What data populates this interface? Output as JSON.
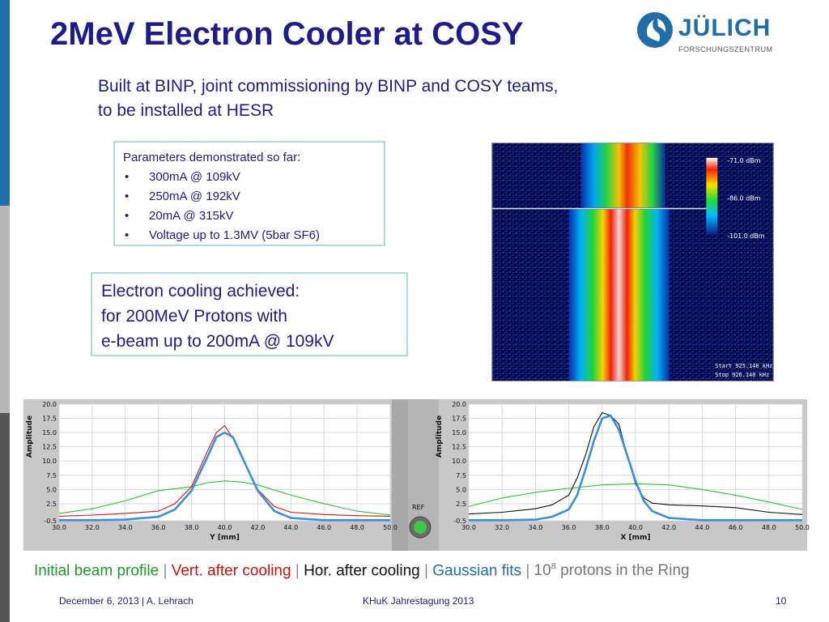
{
  "title": "2MeV Electron Cooler at COSY",
  "logo": {
    "name": "JÜLICH",
    "subname": "FORSCHUNGSZENTRUM"
  },
  "intro": {
    "line1": "Built at BINP, joint commissioning by BINP and COSY teams,",
    "line2": "to be installed at HESR"
  },
  "parameters": {
    "heading": "Parameters demonstrated so far:",
    "items": [
      "300mA @ 109kV",
      "250mA @ 192kV",
      "20mA @ 315kV",
      "Voltage up to 1.3MV (5bar SF6)"
    ]
  },
  "cooling": {
    "line1": "Electron cooling achieved:",
    "line2": "for 200MeV Protons with",
    "line3": "e-beam up to 200mA @ 109kV"
  },
  "spectrum": {
    "scale_labels": [
      "-71.0 dBm",
      "-86.0 dBm",
      "-101.0 dBm"
    ],
    "start": "Start 925.140 kHz",
    "stop": "Stop 926.140 kHz"
  },
  "chart_data": [
    {
      "type": "line",
      "ylabel": "Amplitude",
      "xlabel": "Y [mm]",
      "xlim": [
        30,
        50
      ],
      "ylim": [
        -0.5,
        20
      ],
      "xticks": [
        "30.0",
        "32.0",
        "34.0",
        "36.0",
        "38.0",
        "40.0",
        "42.0",
        "44.0",
        "46.0",
        "48.0",
        "50.0"
      ],
      "yticks": [
        "20.0",
        "17.5",
        "15.0",
        "12.5",
        "10.0",
        "7.5",
        "5.0",
        "2.5",
        "-0.5"
      ],
      "series": [
        {
          "color": "#22cc22",
          "x": [
            30,
            32,
            34,
            36,
            38,
            39,
            40,
            41,
            42,
            44,
            46,
            48,
            50
          ],
          "y": [
            0.8,
            1.6,
            3.0,
            4.8,
            5.5,
            6.2,
            6.5,
            6.3,
            5.8,
            4.0,
            2.5,
            1.2,
            0.5
          ]
        },
        {
          "color": "#dd1111",
          "x": [
            30,
            32,
            34,
            36,
            37,
            38,
            39,
            39.5,
            40,
            40.5,
            41,
            42,
            43,
            44,
            46,
            48,
            50
          ],
          "y": [
            0.3,
            0.5,
            0.8,
            1.2,
            2.5,
            5.5,
            12.0,
            15.0,
            16.2,
            14.0,
            11.0,
            5.0,
            2.0,
            1.0,
            0.6,
            0.4,
            0.3
          ]
        },
        {
          "color": "#3a8fdf",
          "x": [
            30,
            32,
            34,
            36,
            37,
            38,
            39,
            39.5,
            40,
            40.5,
            41,
            42,
            43,
            44,
            46,
            48,
            50
          ],
          "y": [
            -0.4,
            -0.4,
            -0.3,
            0.2,
            1.5,
            4.8,
            11.0,
            14.2,
            15.0,
            14.2,
            11.0,
            4.8,
            1.2,
            0.0,
            -0.4,
            -0.4,
            -0.4
          ]
        }
      ]
    },
    {
      "type": "line",
      "ylabel": "Amplitude",
      "xlabel": "X [mm]",
      "xlim": [
        30,
        50
      ],
      "ylim": [
        -0.5,
        20
      ],
      "xticks": [
        "30.0",
        "32.0",
        "34.0",
        "36.0",
        "38.0",
        "40.0",
        "42.0",
        "44.0",
        "46.0",
        "48.0",
        "50.0"
      ],
      "yticks": [
        "20.0",
        "17.5",
        "15.0",
        "12.5",
        "10.0",
        "7.5",
        "5.0",
        "2.5",
        "-0.5"
      ],
      "series": [
        {
          "color": "#22cc22",
          "x": [
            30,
            32,
            34,
            36,
            38,
            40,
            42,
            44,
            46,
            48,
            50
          ],
          "y": [
            2.0,
            3.5,
            4.5,
            5.2,
            5.8,
            6.0,
            5.8,
            5.0,
            4.0,
            2.8,
            1.5
          ]
        },
        {
          "color": "#111111",
          "x": [
            30,
            32,
            34,
            35,
            36,
            36.5,
            37,
            37.5,
            38,
            38.5,
            39,
            39.5,
            40,
            40.5,
            41,
            42,
            44,
            46,
            48,
            50
          ],
          "y": [
            0.7,
            1.0,
            1.6,
            2.3,
            4.0,
            7.0,
            11.0,
            16.0,
            18.5,
            18.0,
            16.5,
            11.0,
            6.0,
            3.5,
            2.6,
            2.3,
            2.1,
            1.8,
            1.0,
            0.6
          ]
        },
        {
          "color": "#3a8fdf",
          "x": [
            30,
            32,
            34,
            35,
            36,
            36.5,
            37,
            37.5,
            38,
            38.5,
            39,
            39.5,
            40,
            40.5,
            41,
            42,
            44,
            46,
            48,
            50
          ],
          "y": [
            -0.4,
            -0.4,
            -0.3,
            0.2,
            1.5,
            4.0,
            8.5,
            13.5,
            17.5,
            18.0,
            15.5,
            11.0,
            6.5,
            3.0,
            1.2,
            0.0,
            -0.4,
            -0.4,
            -0.4,
            -0.4
          ]
        }
      ]
    }
  ],
  "ref_button": {
    "label": "REF"
  },
  "legend": {
    "initial": "Initial beam profile",
    "sep": "|",
    "vert": "Vert. after cooling",
    "hor": "Hor. after cooling",
    "fits": "Gaussian fits",
    "protons_prefix": "10",
    "protons_exp": "8",
    "protons_suffix": " protons in the Ring"
  },
  "footer": {
    "left": "December 6, 2013 | A. Lehrach",
    "center": "KHuK Jahrestagung 2013",
    "page": "10"
  },
  "colors": {
    "title": "#1c1c8c",
    "box_border": "#a8dbe3",
    "brand": "#1f6ea7"
  }
}
